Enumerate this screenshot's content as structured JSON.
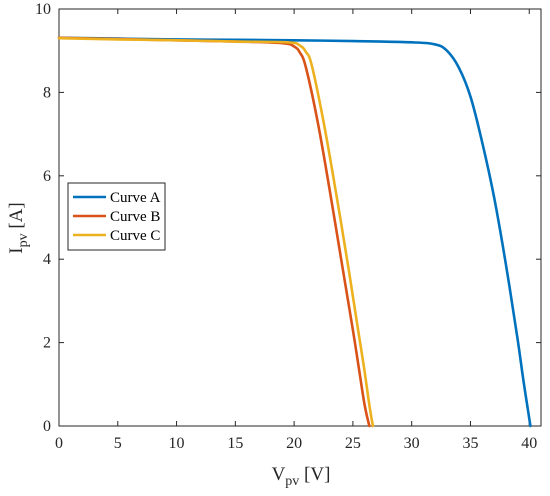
{
  "chart_data": {
    "type": "line",
    "xlabel": {
      "main": "V",
      "sub": "pv",
      "unit": " [V]"
    },
    "ylabel": {
      "main": "I",
      "sub": "pv",
      "unit": " [A]"
    },
    "xlim": [
      0,
      41
    ],
    "ylim": [
      0,
      10
    ],
    "xticks": [
      0,
      5,
      10,
      15,
      20,
      25,
      30,
      35,
      40
    ],
    "yticks": [
      0,
      2,
      4,
      6,
      8,
      10
    ],
    "grid": false,
    "legend_position": "middle-left",
    "series": [
      {
        "name": "Curve A",
        "color": "#0072BD",
        "x": [
          0,
          5,
          10,
          15,
          20,
          25,
          30,
          32,
          33,
          34,
          35,
          36,
          37,
          38,
          39,
          39.5,
          40.1
        ],
        "y": [
          9.31,
          9.29,
          9.27,
          9.26,
          9.25,
          9.23,
          9.2,
          9.15,
          9.0,
          8.6,
          7.9,
          6.8,
          5.5,
          3.9,
          2.1,
          1.1,
          0
        ]
      },
      {
        "name": "Curve B",
        "color": "#D95319",
        "x": [
          0,
          5,
          10,
          15,
          19,
          20,
          20.5,
          21,
          22,
          23,
          24,
          25,
          25.5,
          26,
          26.4
        ],
        "y": [
          9.31,
          9.28,
          9.25,
          9.22,
          9.18,
          9.1,
          8.95,
          8.6,
          7.3,
          5.7,
          4.0,
          2.3,
          1.4,
          0.5,
          0
        ]
      },
      {
        "name": "Curve C",
        "color": "#EDB120",
        "x": [
          0,
          5,
          10,
          15,
          19.5,
          20.5,
          21,
          21.5,
          22.5,
          23.5,
          24.5,
          25.5,
          26,
          26.4,
          26.7
        ],
        "y": [
          9.3,
          9.27,
          9.25,
          9.22,
          9.2,
          9.12,
          8.97,
          8.65,
          7.3,
          5.7,
          4.0,
          2.2,
          1.3,
          0.5,
          0
        ]
      }
    ]
  }
}
